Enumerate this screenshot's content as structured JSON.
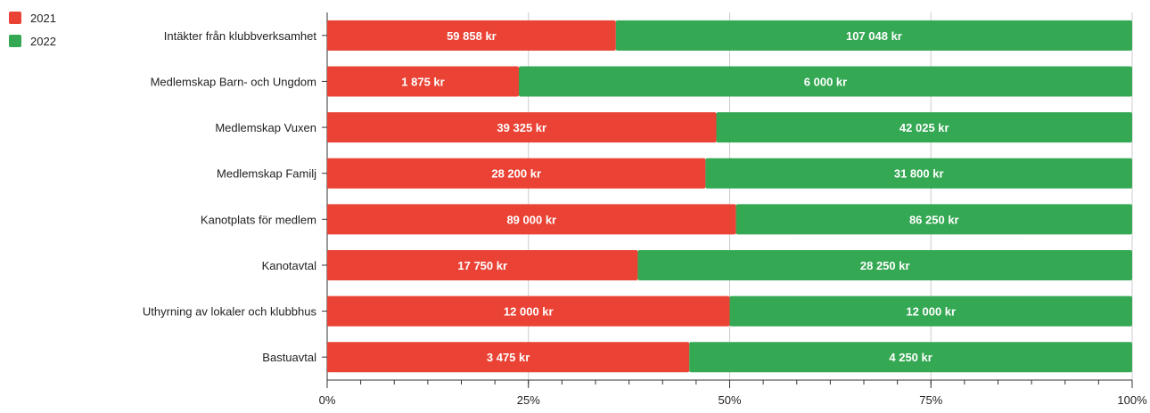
{
  "chart_data": {
    "type": "bar",
    "orientation": "horizontal",
    "stacking": "percent",
    "title": "",
    "xlabel": "",
    "ylabel": "",
    "categories": [
      "Intäkter från klubbverksamhet",
      "Medlemskap Barn- och Ungdom",
      "Medlemskap Vuxen",
      "Medlemskap Familj",
      "Kanotplats för medlem",
      "Kanotavtal",
      "Uthyrning av lokaler och klubbhus",
      "Bastuavtal"
    ],
    "series": [
      {
        "name": "2021",
        "color": "#ea4335",
        "values": [
          59858,
          1875,
          39325,
          28200,
          89000,
          17750,
          12000,
          3475
        ],
        "labels": [
          "59 858 kr",
          "1 875 kr",
          "39 325 kr",
          "28 200 kr",
          "89 000 kr",
          "17 750 kr",
          "12 000 kr",
          "3 475 kr"
        ]
      },
      {
        "name": "2022",
        "color": "#34a853",
        "values": [
          107048,
          6000,
          42025,
          31800,
          86250,
          28250,
          12000,
          4250
        ],
        "labels": [
          "107 048 kr",
          "6 000 kr",
          "42 025 kr",
          "31 800 kr",
          "86 250 kr",
          "28 250 kr",
          "12 000 kr",
          "4 250 kr"
        ]
      }
    ],
    "xticks": [
      "0%",
      "25%",
      "50%",
      "75%",
      "100%"
    ],
    "xlim": [
      0,
      100
    ],
    "grid": true,
    "legend_position": "top-left"
  }
}
